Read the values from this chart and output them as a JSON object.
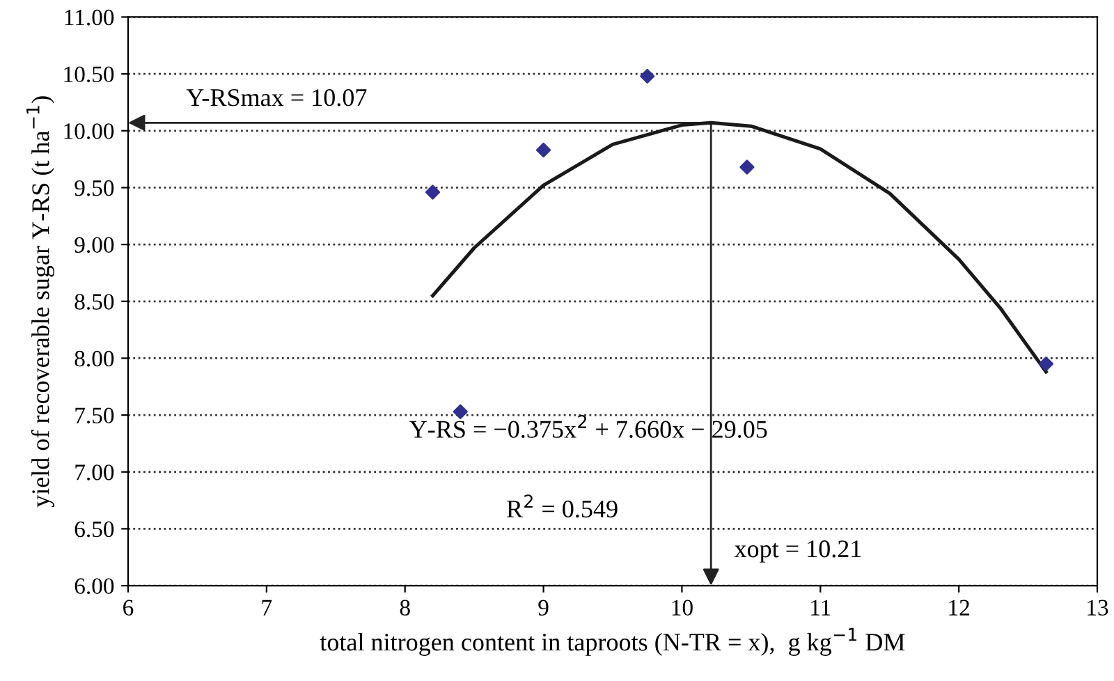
{
  "chart_data": {
    "type": "scatter",
    "xlabel": "total nitrogen content in taproots (N-TR = x),  g kg$^{−1}$ DM",
    "ylabel": "yield of recoverable sugar Y-RS (t ha$^{−1}$)",
    "xlim": [
      6,
      13
    ],
    "xticks": [
      6,
      7,
      8,
      9,
      10,
      11,
      12,
      13
    ],
    "ylim": [
      6,
      11
    ],
    "yticks": [
      {
        "value": 6,
        "label": "6.00"
      },
      {
        "value": 6.5,
        "label": "6.50"
      },
      {
        "value": 7,
        "label": "7.00"
      },
      {
        "value": 7.5,
        "label": "7.50"
      },
      {
        "value": 8,
        "label": "8.00"
      },
      {
        "value": 8.5,
        "label": "8.50"
      },
      {
        "value": 9,
        "label": "9.00"
      },
      {
        "value": 9.5,
        "label": "9.50"
      },
      {
        "value": 10,
        "label": "10.00"
      },
      {
        "value": 10.5,
        "label": "10.50"
      },
      {
        "value": 11,
        "label": "11.00"
      }
    ],
    "grid": "y",
    "legend": false,
    "series": [
      {
        "color": "#2e3192",
        "marker": "diamond",
        "x": [
          8.2,
          8.4,
          9.0,
          9.75,
          10.47,
          12.63
        ],
        "values": [
          9.46,
          7.53,
          9.83,
          10.48,
          9.68,
          7.95
        ]
      },
      {
        "type": "line",
        "color": "#1a1a1a",
        "marker": "none",
        "line_style": "solid",
        "x": [
          8.2,
          8.5,
          9.0,
          9.5,
          10.0,
          10.21,
          10.5,
          11.0,
          11.5,
          12.0,
          12.3,
          12.63
        ],
        "values": [
          8.55,
          8.97,
          9.52,
          9.88,
          10.05,
          10.07,
          10.04,
          9.84,
          9.45,
          8.87,
          8.44,
          7.88
        ]
      }
    ],
    "annotations": [
      "Y-RS = −0.375x$^{2}$ + 7.660x − 29.05",
      "R$^{2}$ = 0.549"
    ],
    "ref_lines": [
      {
        "axis": "y",
        "value": 10.07,
        "label": "Y-RSmax = 10.07",
        "color": "#222222",
        "line_style": "solid"
      },
      {
        "axis": "x",
        "value": 10.21,
        "label": "xopt = 10.21",
        "color": "#222222",
        "line_style": "solid"
      }
    ]
  }
}
